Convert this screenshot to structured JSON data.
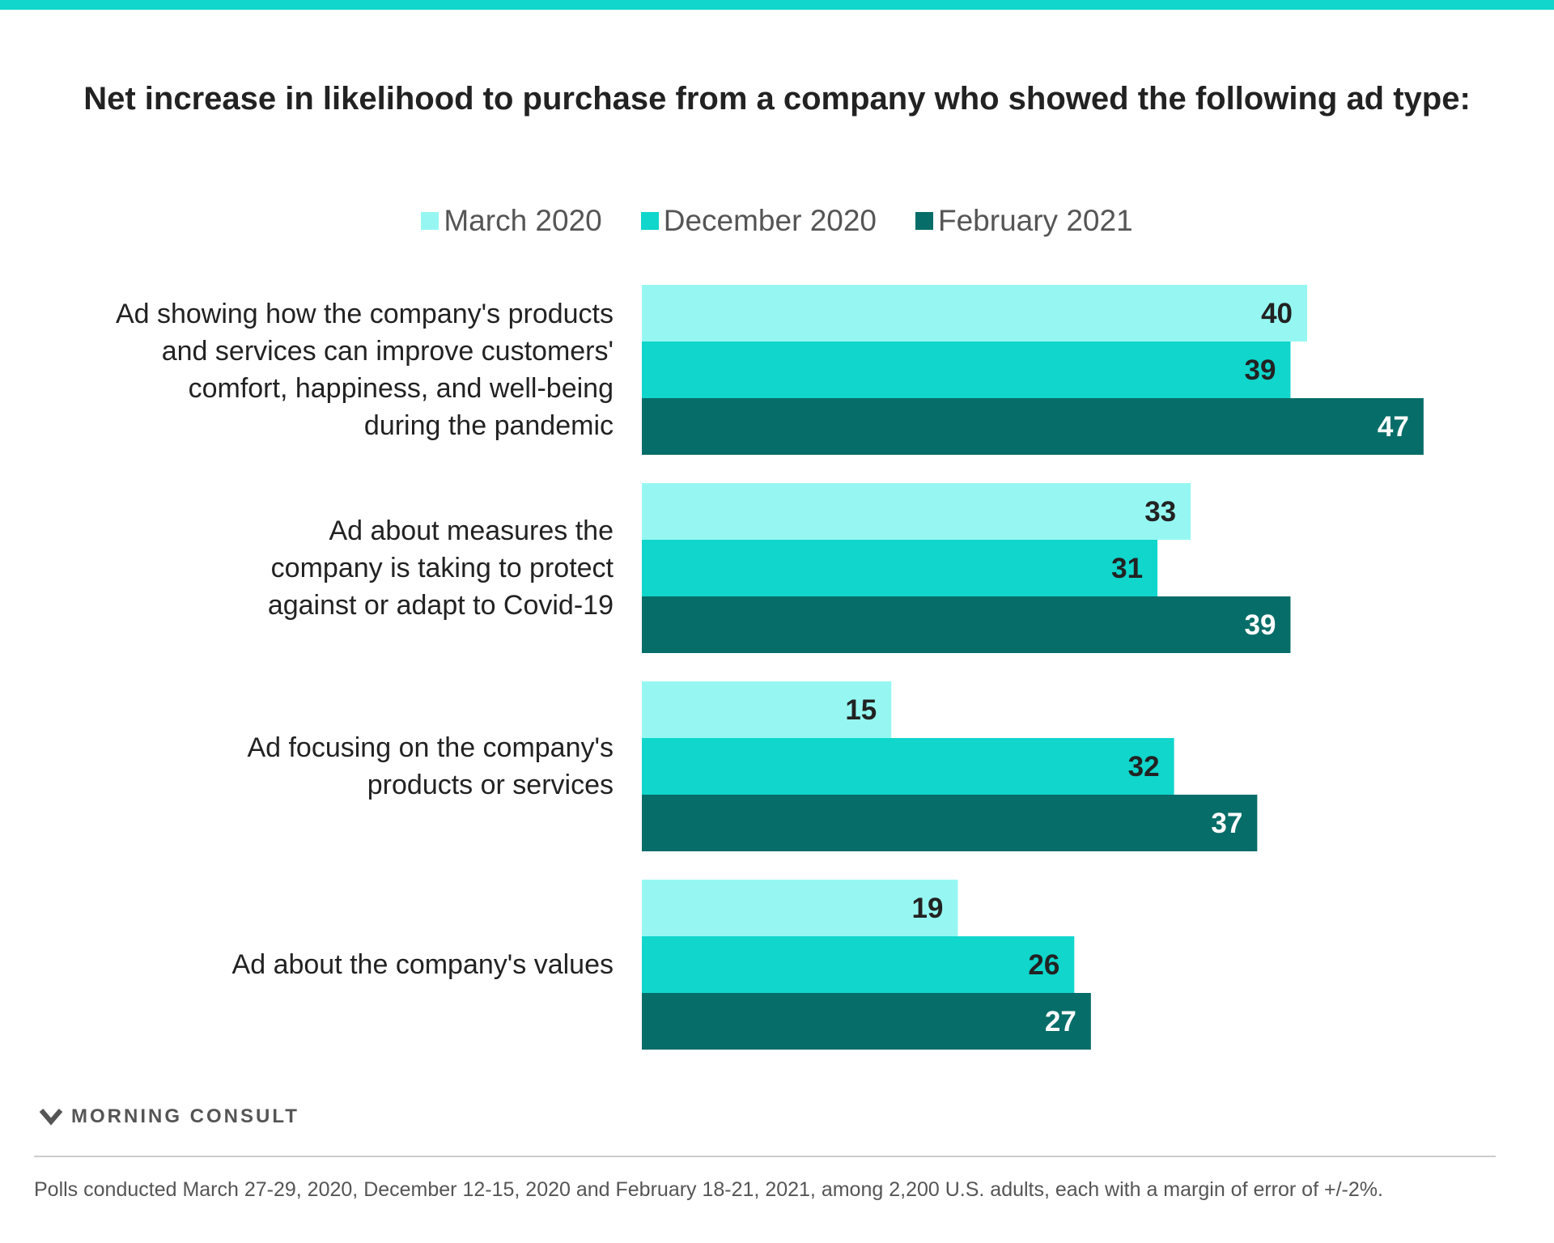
{
  "chart_data": {
    "type": "bar",
    "orientation": "horizontal",
    "title": "Net increase in likelihood to purchase from a company who showed the following ad type:",
    "categories": [
      [
        "Ad showing how the company's products",
        "and services can improve customers'",
        "comfort, happiness, and well-being",
        "during the pandemic"
      ],
      [
        "Ad about measures the",
        "company is taking to protect",
        "against or adapt to Covid-19"
      ],
      [
        "Ad focusing on the company's",
        "products or services"
      ],
      [
        "Ad about the company's values"
      ]
    ],
    "series": [
      {
        "name": "March 2020",
        "color": "#96F7F2",
        "label_color": "#222222",
        "values": [
          40,
          33,
          15,
          19
        ]
      },
      {
        "name": "December 2020",
        "color": "#10D6CC",
        "label_color": "#222222",
        "values": [
          39,
          31,
          32,
          26
        ]
      },
      {
        "name": "February 2021",
        "color": "#076D68",
        "label_color": "#ffffff",
        "values": [
          47,
          39,
          37,
          27
        ]
      }
    ],
    "xlim": [
      0,
      47
    ],
    "legend": "top-center",
    "grid": false
  },
  "colors": {
    "accent_bar": "#10D6CC"
  },
  "brand": {
    "logo_text": "MORNING CONSULT",
    "logo_icon": "morning-consult-m-icon"
  },
  "footnote": "Polls conducted March 27-29, 2020, December 12-15, 2020 and February 18-21, 2021, among 2,200 U.S. adults, each with a margin of error of +/-2%."
}
